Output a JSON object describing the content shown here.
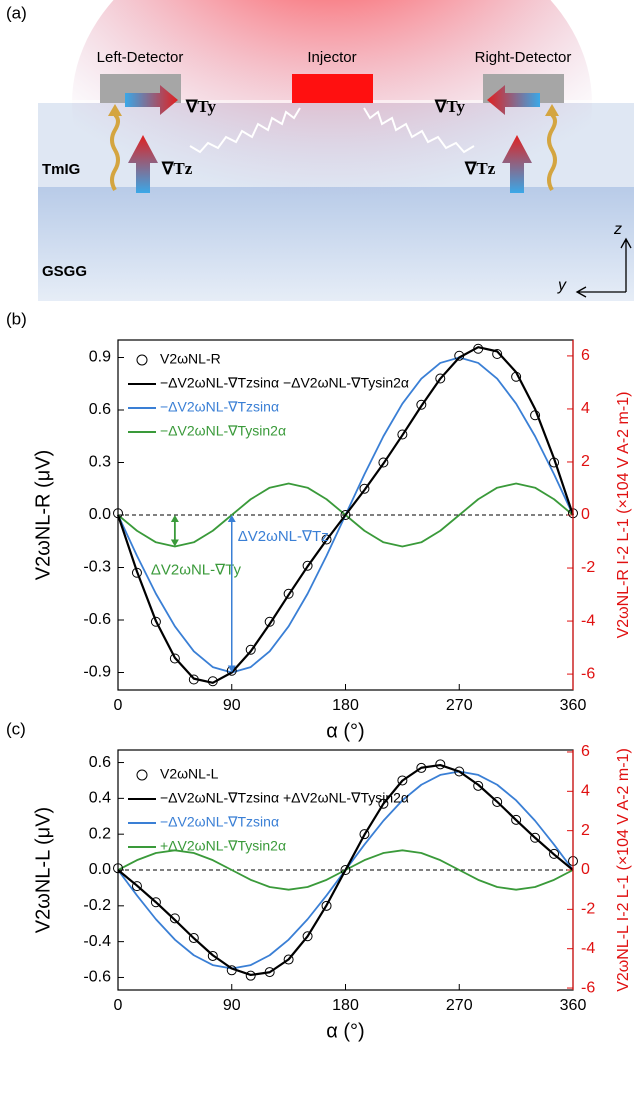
{
  "diagram": {
    "label": "(a)",
    "left_detector": "Left-Detector",
    "injector": "Injector",
    "right_detector": "Right-Detector",
    "layer_top": "TmIG",
    "layer_bottom": "GSGG",
    "grad_y_left": "∇Ty",
    "grad_y_right": "∇Ty",
    "grad_z_left": "∇Tz",
    "grad_z_right": "∇Tz",
    "axis_z": "z",
    "axis_y": "y"
  },
  "chart_data": [
    {
      "type": "line",
      "label": "(b)",
      "xlabel": "α (°)",
      "ylabel": "V2ωNL-R (μV)",
      "y2label": "V2ωNL-R I-2 L-1 (×104 V A-2 m-1)",
      "x": [
        0,
        15,
        30,
        45,
        60,
        75,
        90,
        105,
        120,
        135,
        150,
        165,
        180,
        195,
        210,
        225,
        240,
        255,
        270,
        285,
        300,
        315,
        330,
        345,
        360
      ],
      "xlim": [
        0,
        360
      ],
      "xticks": [
        0,
        90,
        180,
        270,
        360
      ],
      "ylim": [
        -1.0,
        1.0
      ],
      "yticks": [
        -0.9,
        -0.6,
        -0.3,
        {
          "value": 0,
          "label": "0.0"
        },
        0.3,
        0.6,
        0.9
      ],
      "y2lim": [
        -6.6,
        6.6
      ],
      "y2ticks": [
        -6,
        -4,
        -2,
        0,
        2,
        4,
        6
      ],
      "y2color": "#e01010",
      "series": [
        {
          "name": "V2ωNL-R",
          "color": "#000000",
          "marker": "circle",
          "values": [
            0.01,
            -0.33,
            -0.61,
            -0.82,
            -0.94,
            -0.95,
            -0.89,
            -0.77,
            -0.61,
            -0.45,
            -0.29,
            -0.14,
            0.0,
            0.15,
            0.3,
            0.46,
            0.63,
            0.78,
            0.91,
            0.95,
            0.92,
            0.79,
            0.57,
            0.3,
            0.01
          ]
        },
        {
          "name": "−ΔV2ωNL-∇Tzsinα −ΔV2ωNL-∇Tysin2α",
          "color": "#000000",
          "values": [
            0,
            -0.323,
            -0.606,
            -0.816,
            -0.935,
            -0.959,
            -0.9,
            -0.779,
            -0.623,
            -0.456,
            -0.294,
            -0.143,
            0,
            0.143,
            0.294,
            0.456,
            0.623,
            0.779,
            0.9,
            0.959,
            0.935,
            0.816,
            0.606,
            0.323,
            0
          ]
        },
        {
          "name": "−ΔV2ωNL-∇Tzsinα",
          "color": "#3a7fd5",
          "values": [
            0,
            -0.233,
            -0.45,
            -0.636,
            -0.779,
            -0.869,
            -0.9,
            -0.869,
            -0.779,
            -0.636,
            -0.45,
            -0.233,
            0,
            0.233,
            0.45,
            0.636,
            0.779,
            0.869,
            0.9,
            0.869,
            0.779,
            0.636,
            0.45,
            0.233,
            0
          ]
        },
        {
          "name": "−ΔV2ωNL-∇Tysin2α",
          "color": "#3a9a3a",
          "values": [
            0,
            -0.09,
            -0.156,
            -0.18,
            -0.156,
            -0.09,
            0,
            0.09,
            0.156,
            0.18,
            0.156,
            0.09,
            0,
            -0.09,
            -0.156,
            -0.18,
            -0.156,
            -0.09,
            0,
            0.09,
            0.156,
            0.18,
            0.156,
            0.09,
            0
          ]
        }
      ],
      "annotations": [
        {
          "text": "ΔV2ωNL-∇Ty",
          "color": "#3a9a3a"
        },
        {
          "text": "ΔV2ωNL-∇Tz",
          "color": "#3a7fd5"
        }
      ]
    },
    {
      "type": "line",
      "label": "(c)",
      "xlabel": "α (°)",
      "ylabel": "V2ωNL-L (μV)",
      "y2label": "V2ωNL-L I-2 L-1 (×104 V A-2 m-1)",
      "x": [
        0,
        15,
        30,
        45,
        60,
        75,
        90,
        105,
        120,
        135,
        150,
        165,
        180,
        195,
        210,
        225,
        240,
        255,
        270,
        285,
        300,
        315,
        330,
        345,
        360
      ],
      "xlim": [
        0,
        360
      ],
      "xticks": [
        0,
        90,
        180,
        270,
        360
      ],
      "ylim": [
        -0.67,
        0.67
      ],
      "yticks": [
        -0.6,
        -0.4,
        -0.2,
        {
          "value": 0,
          "label": "0.0"
        },
        0.2,
        0.4,
        0.6
      ],
      "y2lim": [
        -6.1,
        6.1
      ],
      "y2ticks": [
        -6,
        -4,
        -2,
        0,
        2,
        4,
        6
      ],
      "y2color": "#e01010",
      "series": [
        {
          "name": "V2ωNL-L",
          "color": "#000000",
          "marker": "circle",
          "values": [
            0.01,
            -0.09,
            -0.18,
            -0.27,
            -0.38,
            -0.48,
            -0.56,
            -0.59,
            -0.57,
            -0.5,
            -0.37,
            -0.2,
            0.0,
            0.2,
            0.37,
            0.5,
            0.57,
            0.59,
            0.55,
            0.47,
            0.38,
            0.28,
            0.18,
            0.09,
            0.05
          ]
        },
        {
          "name": "−ΔV2ωNL-∇Tzsinα +ΔV2ωNL-∇Tysin2α",
          "color": "#000000",
          "values": [
            0,
            -0.087,
            -0.18,
            -0.279,
            -0.381,
            -0.476,
            -0.55,
            -0.586,
            -0.571,
            -0.499,
            -0.37,
            -0.197,
            0,
            0.197,
            0.37,
            0.499,
            0.571,
            0.586,
            0.55,
            0.476,
            0.381,
            0.279,
            0.18,
            0.087,
            0
          ]
        },
        {
          "name": "−ΔV2ωNL-∇Tzsinα",
          "color": "#3a7fd5",
          "values": [
            0,
            -0.142,
            -0.275,
            -0.389,
            -0.476,
            -0.531,
            -0.55,
            -0.531,
            -0.476,
            -0.389,
            -0.275,
            -0.142,
            0,
            0.142,
            0.275,
            0.389,
            0.476,
            0.531,
            0.55,
            0.531,
            0.476,
            0.389,
            0.275,
            0.142,
            0
          ]
        },
        {
          "name": "+ΔV2ωNL-∇Tysin2α",
          "color": "#3a9a3a",
          "values": [
            0,
            0.055,
            0.095,
            0.11,
            0.095,
            0.055,
            0,
            -0.055,
            -0.095,
            -0.11,
            -0.095,
            -0.055,
            0,
            0.055,
            0.095,
            0.11,
            0.095,
            0.055,
            0,
            -0.055,
            -0.095,
            -0.11,
            -0.095,
            -0.055,
            0
          ]
        }
      ]
    }
  ]
}
